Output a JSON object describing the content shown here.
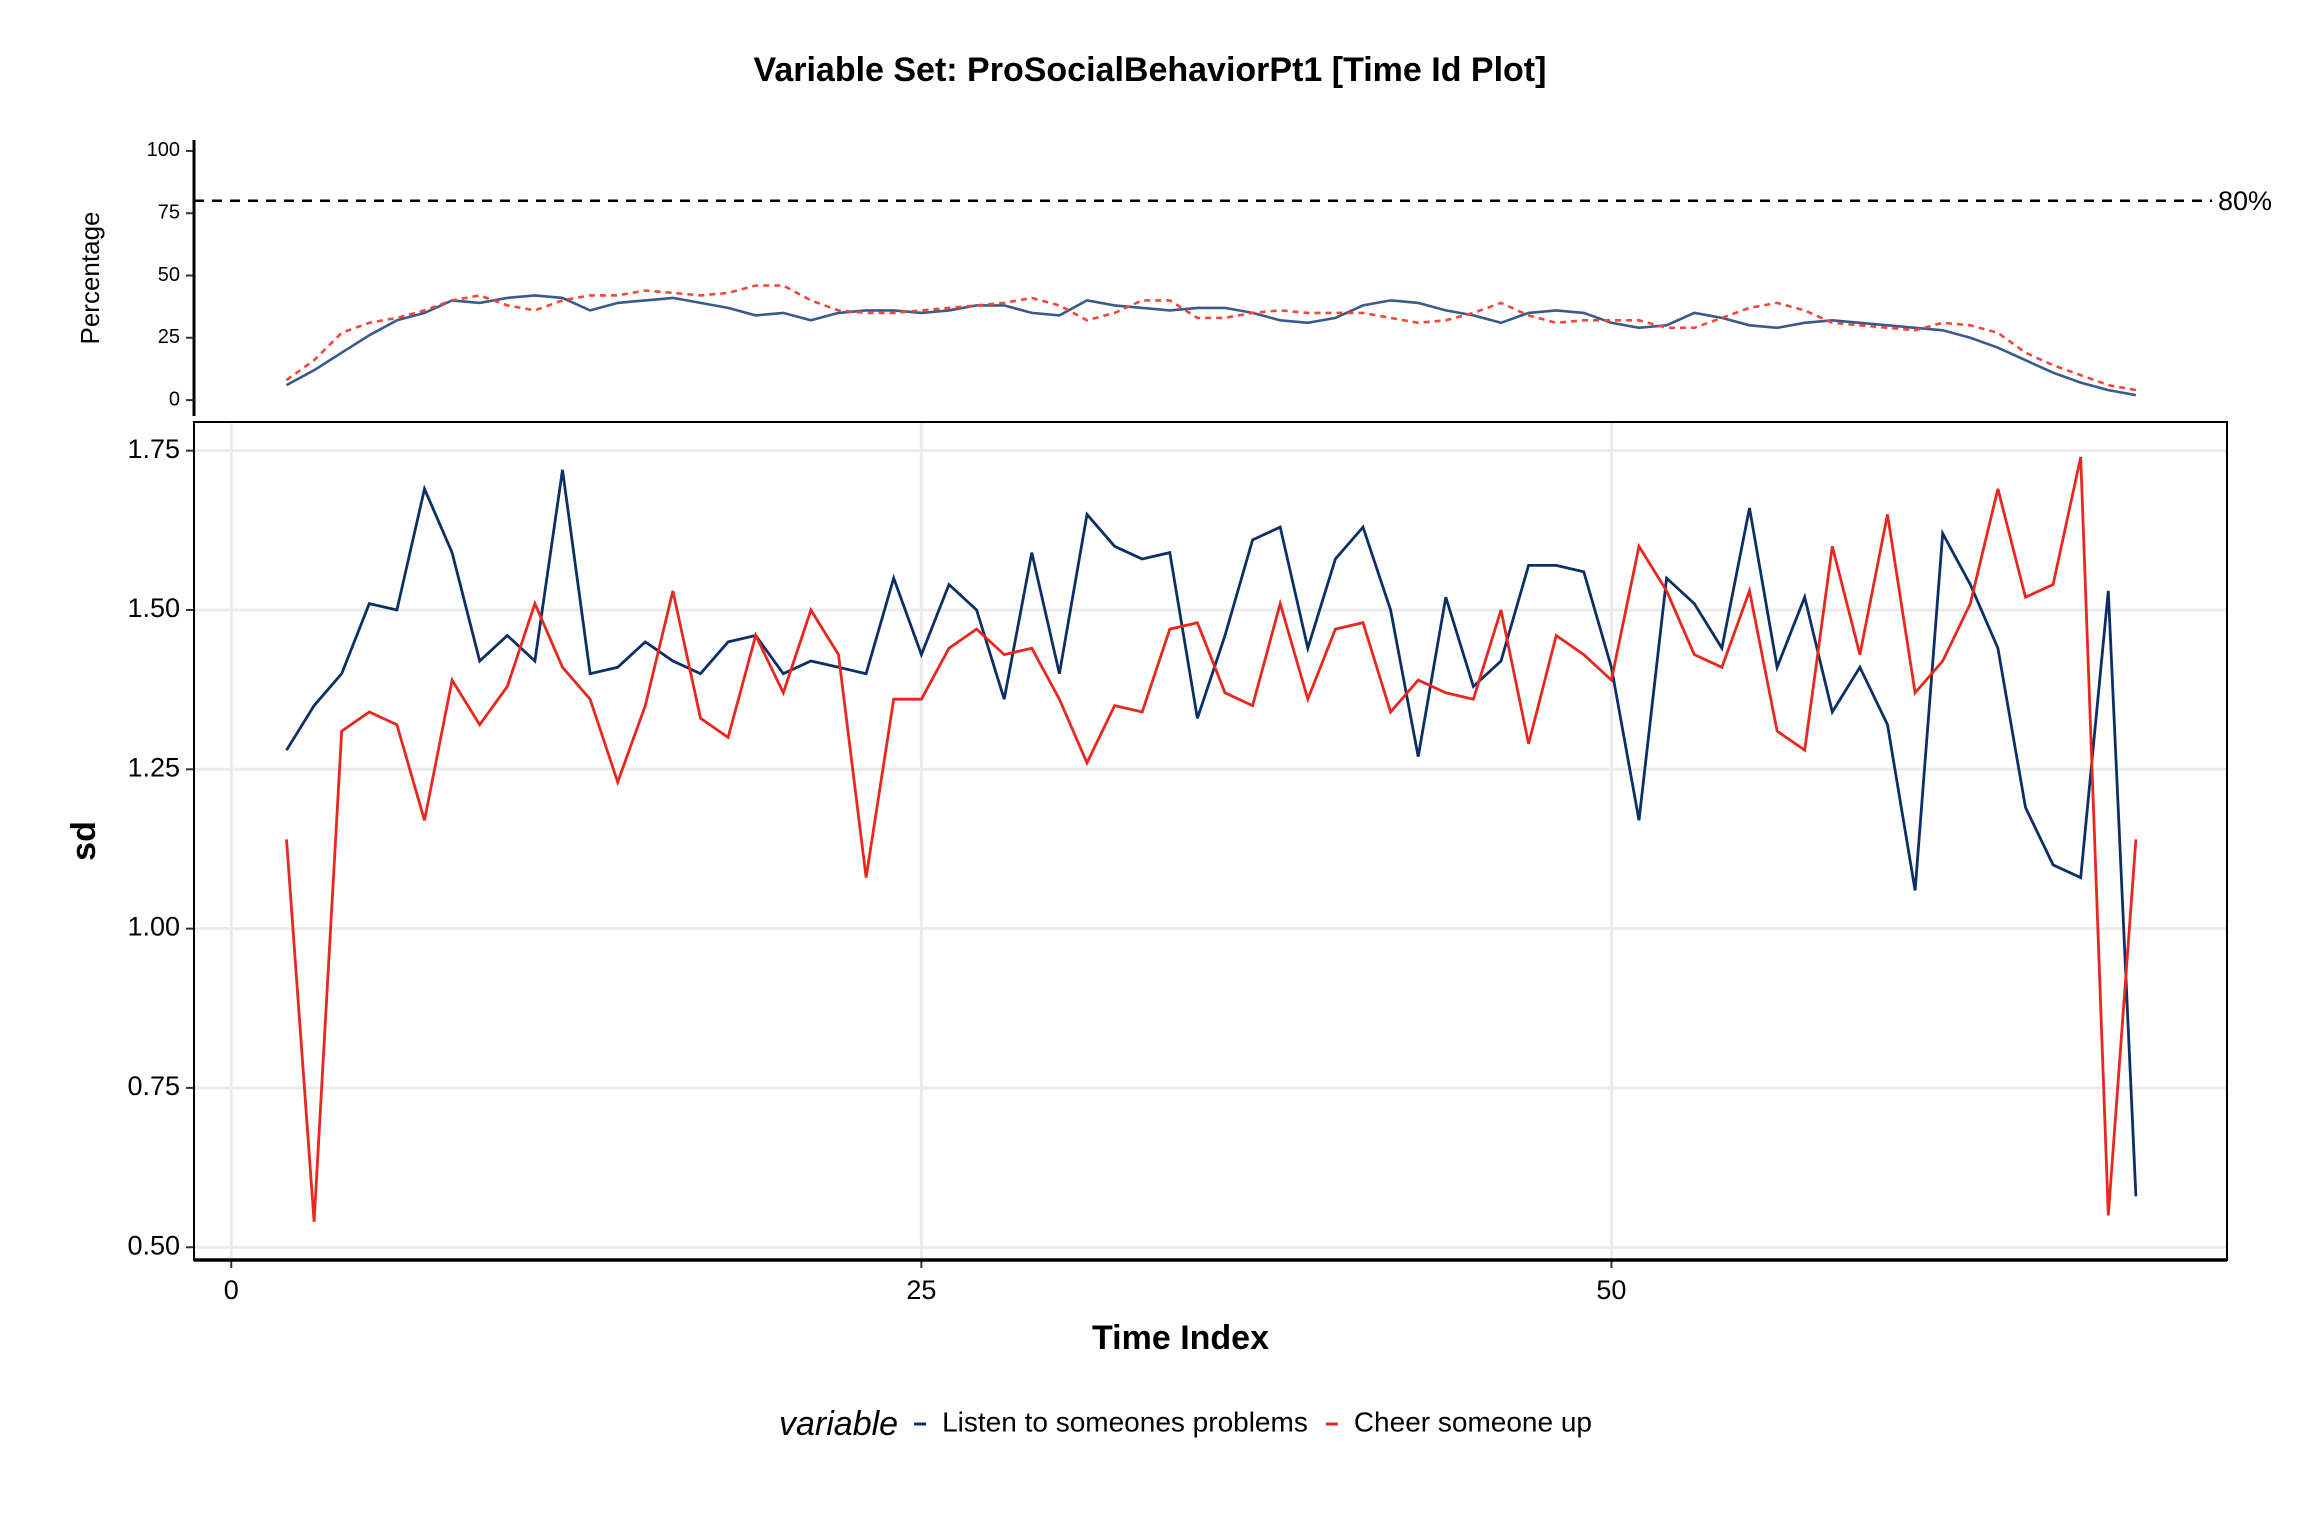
{
  "chart_data": [
    {
      "type": "line",
      "title": "Variable Set: ProSocialBehaviorPt1 [Time Id Plot]",
      "ylabel": "Percentage",
      "x": [
        2,
        3,
        4,
        5,
        6,
        7,
        8,
        9,
        10,
        11,
        12,
        13,
        14,
        15,
        16,
        17,
        18,
        19,
        20,
        21,
        22,
        23,
        24,
        25,
        26,
        27,
        28,
        29,
        30,
        31,
        32,
        33,
        34,
        35,
        36,
        37,
        38,
        39,
        40,
        41,
        42,
        43,
        44,
        45,
        46,
        47,
        48,
        49,
        50,
        51,
        52,
        53,
        54,
        55,
        56,
        57,
        58,
        59,
        60,
        61,
        62,
        63,
        64,
        65,
        66,
        67,
        68,
        69
      ],
      "xlim": [
        -1.35,
        72.3
      ],
      "ylim": [
        -6.4,
        104.4
      ],
      "yticks": [
        0,
        25,
        50,
        75,
        100
      ],
      "grid": false,
      "reference_line": {
        "value": 80,
        "label": "80%"
      },
      "series": [
        {
          "name": "Listen to someones problems",
          "color": "#3a5a8c",
          "dash": false,
          "values": [
            6,
            12,
            19,
            26,
            32,
            35,
            40,
            39,
            41,
            42,
            41,
            36,
            39,
            40,
            41,
            39,
            37,
            34,
            35,
            32,
            35,
            36,
            36,
            35,
            36,
            38,
            38,
            35,
            34,
            40,
            38,
            37,
            36,
            37,
            37,
            35,
            32,
            31,
            33,
            38,
            40,
            39,
            36,
            34,
            31,
            35,
            36,
            35,
            31,
            29,
            30,
            35,
            33,
            30,
            29,
            31,
            32,
            31,
            30,
            29,
            28,
            25,
            21,
            16,
            11,
            7,
            4,
            2
          ]
        },
        {
          "name": "Cheer someone up",
          "color": "#f0483c",
          "dash": true,
          "values": [
            8,
            16,
            27,
            31,
            33,
            36,
            40,
            42,
            38,
            36,
            40,
            42,
            42,
            44,
            43,
            42,
            43,
            46,
            46,
            40,
            36,
            35,
            35,
            36,
            37,
            38,
            39,
            41,
            38,
            32,
            35,
            40,
            40,
            33,
            33,
            35,
            36,
            35,
            35,
            35,
            33,
            31,
            32,
            35,
            39,
            34,
            31,
            32,
            32,
            32,
            29,
            29,
            33,
            37,
            39,
            36,
            31,
            30,
            29,
            28,
            31,
            30,
            27,
            19,
            14,
            10,
            6,
            4
          ]
        }
      ]
    },
    {
      "type": "line",
      "xlabel": "Time Index",
      "ylabel": "sd",
      "legend_title": "variable",
      "legend": "bottom",
      "x": [
        2,
        3,
        4,
        5,
        6,
        7,
        8,
        9,
        10,
        11,
        12,
        13,
        14,
        15,
        16,
        17,
        18,
        19,
        20,
        21,
        22,
        23,
        24,
        25,
        26,
        27,
        28,
        29,
        30,
        31,
        32,
        33,
        34,
        35,
        36,
        37,
        38,
        39,
        40,
        41,
        42,
        43,
        44,
        45,
        46,
        47,
        48,
        49,
        50,
        51,
        52,
        53,
        54,
        55,
        56,
        57,
        58,
        59,
        60,
        61,
        62,
        63,
        64,
        65,
        66,
        67,
        68,
        69
      ],
      "xlim": [
        -1.35,
        72.3
      ],
      "xticks": [
        0,
        25,
        50
      ],
      "ylim": [
        0.48,
        1.795
      ],
      "yticks": [
        {
          "value": 0.5,
          "label": "0.50"
        },
        {
          "value": 0.75,
          "label": "0.75"
        },
        {
          "value": 1,
          "label": "1.00"
        },
        {
          "value": 1.25,
          "label": "1.25"
        },
        {
          "value": 1.5,
          "label": "1.50"
        },
        {
          "value": 1.75,
          "label": "1.75"
        }
      ],
      "grid": true,
      "series": [
        {
          "name": "Listen to someones problems",
          "color": "#0d2f66",
          "dash": false,
          "values": [
            1.28,
            1.35,
            1.4,
            1.51,
            1.5,
            1.69,
            1.59,
            1.42,
            1.46,
            1.42,
            1.72,
            1.4,
            1.41,
            1.45,
            1.42,
            1.4,
            1.45,
            1.46,
            1.4,
            1.42,
            1.41,
            1.4,
            1.55,
            1.43,
            1.54,
            1.5,
            1.36,
            1.59,
            1.4,
            1.65,
            1.6,
            1.58,
            1.59,
            1.33,
            1.46,
            1.61,
            1.63,
            1.44,
            1.58,
            1.63,
            1.5,
            1.27,
            1.52,
            1.38,
            1.42,
            1.57,
            1.57,
            1.56,
            1.41,
            1.17,
            1.55,
            1.51,
            1.44,
            1.66,
            1.41,
            1.52,
            1.34,
            1.41,
            1.32,
            1.06,
            1.62,
            1.54,
            1.44,
            1.19,
            1.1,
            1.08,
            1.53,
            0.58
          ]
        },
        {
          "name": "Cheer someone up",
          "color": "#e8281e",
          "dash": false,
          "values": [
            1.14,
            0.54,
            1.31,
            1.34,
            1.32,
            1.17,
            1.39,
            1.32,
            1.38,
            1.51,
            1.41,
            1.36,
            1.23,
            1.35,
            1.53,
            1.33,
            1.3,
            1.46,
            1.37,
            1.5,
            1.43,
            1.08,
            1.36,
            1.36,
            1.44,
            1.47,
            1.43,
            1.44,
            1.36,
            1.26,
            1.35,
            1.34,
            1.47,
            1.48,
            1.37,
            1.35,
            1.51,
            1.36,
            1.47,
            1.48,
            1.34,
            1.39,
            1.37,
            1.36,
            1.5,
            1.29,
            1.46,
            1.43,
            1.39,
            1.6,
            1.53,
            1.43,
            1.41,
            1.53,
            1.31,
            1.28,
            1.6,
            1.43,
            1.65,
            1.37,
            1.42,
            1.51,
            1.69,
            1.52,
            1.54,
            1.74,
            0.55,
            1.14
          ]
        }
      ]
    }
  ]
}
